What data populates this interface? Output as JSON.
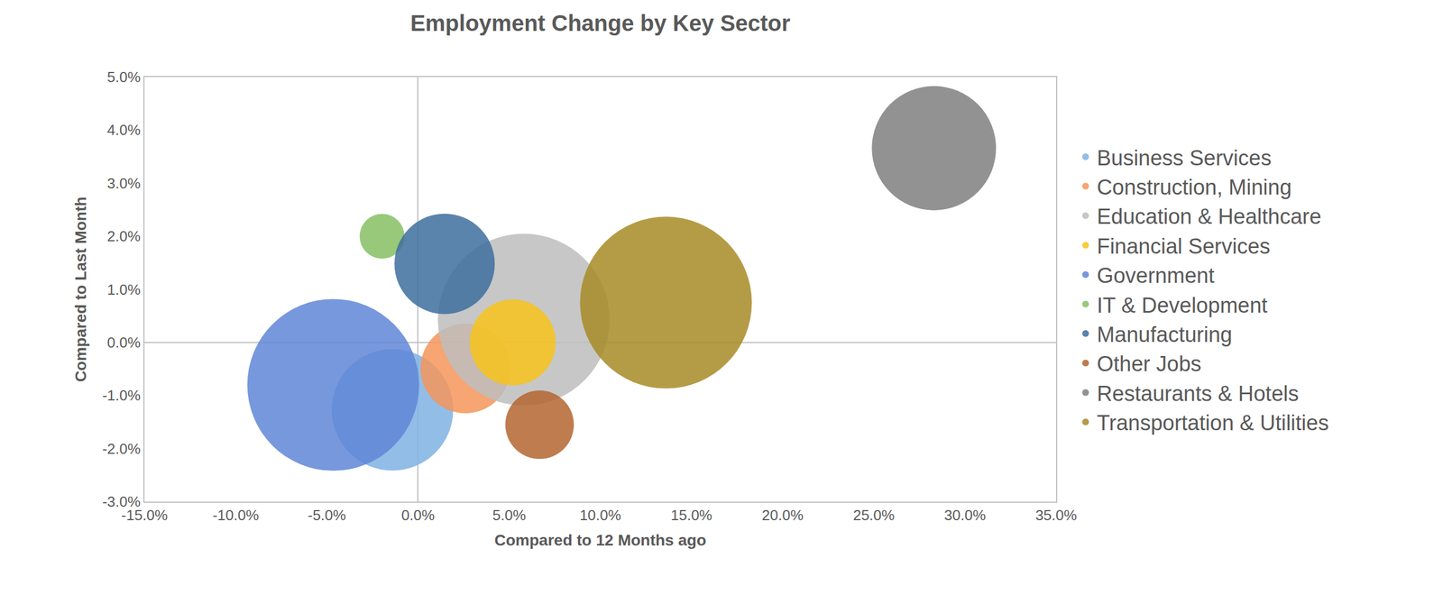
{
  "chart_data": {
    "type": "bubble",
    "title": "Employment Change by Key Sector",
    "x_label": "Compared to 12 Months ago",
    "y_label": "Compared to Last Month",
    "xlim": [
      -15,
      35
    ],
    "xticks": [
      {
        "value": -15,
        "label": "-15.0%"
      },
      {
        "value": -10,
        "label": "-10.0%"
      },
      {
        "value": -5,
        "label": "-5.0%"
      },
      {
        "value": 0,
        "label": "0.0%"
      },
      {
        "value": 5,
        "label": "5.0%"
      },
      {
        "value": 10,
        "label": "10.0%"
      },
      {
        "value": 15,
        "label": "15.0%"
      },
      {
        "value": 20,
        "label": "20.0%"
      },
      {
        "value": 25,
        "label": "25.0%"
      },
      {
        "value": 30,
        "label": "30.0%"
      },
      {
        "value": 35,
        "label": "35.0%"
      }
    ],
    "ylim": [
      -3,
      5
    ],
    "yticks": [
      {
        "value": -3,
        "label": "-3.0%"
      },
      {
        "value": -2,
        "label": "-2.0%"
      },
      {
        "value": -1,
        "label": "-1.0%"
      },
      {
        "value": 0,
        "label": "0.0%"
      },
      {
        "value": 1,
        "label": "1.0%"
      },
      {
        "value": 2,
        "label": "2.0%"
      },
      {
        "value": 3,
        "label": "3.0%"
      },
      {
        "value": 4,
        "label": "4.0%"
      },
      {
        "value": 5,
        "label": "5.0%"
      }
    ],
    "grid": false,
    "legend": "right",
    "series": [
      {
        "name": "Business Services",
        "color": "#7fb1e3",
        "x": [
          -1.4
        ],
        "y": [
          -1.27
        ],
        "size": [
          22
        ]
      },
      {
        "name": "Construction, Mining",
        "color": "#f4955a",
        "x": [
          2.6
        ],
        "y": [
          -0.49
        ],
        "size": [
          12
        ]
      },
      {
        "name": "Education & Healthcare",
        "color": "#bdbdbd",
        "x": [
          5.8
        ],
        "y": [
          0.43
        ],
        "size": [
          44
        ]
      },
      {
        "name": "Financial Services",
        "color": "#f7c31a",
        "x": [
          5.2
        ],
        "y": [
          0.0
        ],
        "size": [
          11
        ]
      },
      {
        "name": "Government",
        "color": "#5f86d6",
        "x": [
          -4.65
        ],
        "y": [
          -0.8
        ],
        "size": [
          44
        ]
      },
      {
        "name": "IT & Development",
        "color": "#86bf63",
        "x": [
          -1.97
        ],
        "y": [
          2.0
        ],
        "size": [
          3
        ]
      },
      {
        "name": "Manufacturing",
        "color": "#3d6e9e",
        "x": [
          1.46
        ],
        "y": [
          1.48
        ],
        "size": [
          15
        ]
      },
      {
        "name": "Other Jobs",
        "color": "#b4652f",
        "x": [
          6.67
        ],
        "y": [
          -1.55
        ],
        "size": [
          7
        ]
      },
      {
        "name": "Restaurants & Hotels",
        "color": "#7f7f7f",
        "x": [
          28.3
        ],
        "y": [
          3.66
        ],
        "size": [
          23
        ]
      },
      {
        "name": "Transportation & Utilities",
        "color": "#a78b26",
        "x": [
          13.6
        ],
        "y": [
          0.75
        ],
        "size": [
          44
        ]
      }
    ]
  }
}
